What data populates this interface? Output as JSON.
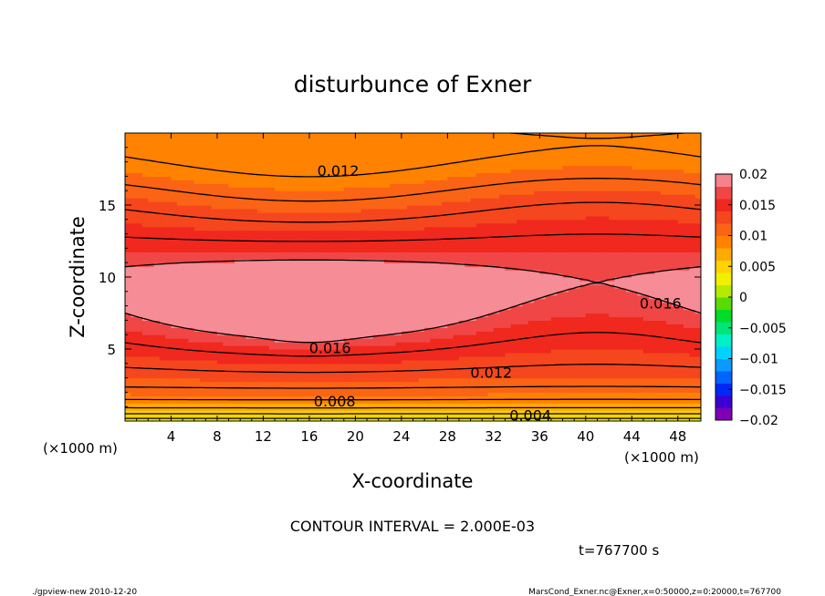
{
  "chart_data": {
    "type": "contour",
    "title": "disturbunce of Exner",
    "xlabel": "X-coordinate",
    "ylabel": "Z-coordinate",
    "x_unit_left": "(×1000 m)",
    "x_unit_right": "(×1000 m)",
    "xlim": [
      0,
      50
    ],
    "ylim": [
      0,
      20
    ],
    "x_ticks": [
      4,
      8,
      12,
      16,
      20,
      24,
      28,
      32,
      36,
      40,
      44,
      48
    ],
    "y_ticks": [
      5,
      10,
      15
    ],
    "contour_interval_text": "CONTOUR INTERVAL = 2.000E-03",
    "contour_interval": 0.002,
    "time_text": "t=767700 s",
    "contour_labels": [
      {
        "text": "0.012",
        "x": 18.5,
        "z": 17.4
      },
      {
        "text": "0.016",
        "x": 46.5,
        "z": 8.2
      },
      {
        "text": "0.016",
        "x": 17.8,
        "z": 5.1
      },
      {
        "text": "0.012",
        "x": 31.8,
        "z": 3.4
      },
      {
        "text": "0.008",
        "x": 18.2,
        "z": 1.4
      },
      {
        "text": "0.004",
        "x": 35.2,
        "z": 0.4
      }
    ],
    "colorbar": {
      "ticks": [
        "0.02",
        "0.015",
        "0.01",
        "0.005",
        "0",
        "−0.005",
        "−0.01",
        "−0.015",
        "−0.02"
      ],
      "levels": [
        -0.02,
        0.02
      ],
      "colors": [
        "#7f00b4",
        "#3c00d2",
        "#0028f5",
        "#0064ff",
        "#0a9bff",
        "#00d2ff",
        "#00f0c8",
        "#00e678",
        "#00dc28",
        "#5adc00",
        "#b4eb00",
        "#f0f000",
        "#ffd200",
        "#ffaa00",
        "#ff8200",
        "#fa6414",
        "#f5461e",
        "#f0281e",
        "#f04646",
        "#f5828c"
      ]
    },
    "value_bands": [
      {
        "value": 0.003,
        "color": "#a0e600"
      },
      {
        "value": 0.005,
        "color": "#e6f000"
      },
      {
        "value": 0.007,
        "color": "#ffd200"
      },
      {
        "value": 0.009,
        "color": "#ffaa00"
      },
      {
        "value": 0.011,
        "color": "#ff8200"
      },
      {
        "value": 0.013,
        "color": "#fa6414"
      },
      {
        "value": 0.015,
        "color": "#f5461e"
      },
      {
        "value": 0.017,
        "color": "#f0281e"
      },
      {
        "value": 0.018,
        "color": "#f04646"
      },
      {
        "value": 0.019,
        "color": "#f58c96"
      }
    ]
  },
  "footer": {
    "left": "./gpview-new   2010-12-20",
    "right": "MarsCond_Exner.nc@Exner,x=0:50000,z=0:20000,t=767700"
  }
}
